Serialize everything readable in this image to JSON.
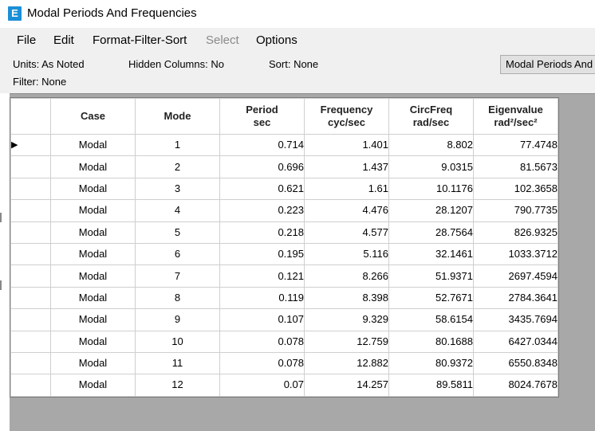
{
  "window": {
    "title": "Modal Periods And Frequencies",
    "app_icon_letter": "E",
    "app_icon_color": "#1a8fd8"
  },
  "menu": {
    "file": "File",
    "edit": "Edit",
    "format": "Format-Filter-Sort",
    "select": "Select",
    "options": "Options"
  },
  "info": {
    "units": "Units: As Noted",
    "hidden_columns": "Hidden Columns: No",
    "sort": "Sort: None",
    "filter": "Filter: None",
    "table_button": "Modal Periods And Frequencies"
  },
  "table": {
    "headers": {
      "case": "Case",
      "mode": "Mode",
      "period": "Period",
      "period_unit": "sec",
      "frequency": "Frequency",
      "frequency_unit": "cyc/sec",
      "circfreq": "CircFreq",
      "circfreq_unit": "rad/sec",
      "eigenvalue": "Eigenvalue",
      "eigenvalue_unit": "rad²/sec²"
    },
    "row_pointer": "▶",
    "rows": [
      {
        "case": "Modal",
        "mode": "1",
        "period": "0.714",
        "frequency": "1.401",
        "circfreq": "8.802",
        "eigenvalue": "77.4748"
      },
      {
        "case": "Modal",
        "mode": "2",
        "period": "0.696",
        "frequency": "1.437",
        "circfreq": "9.0315",
        "eigenvalue": "81.5673"
      },
      {
        "case": "Modal",
        "mode": "3",
        "period": "0.621",
        "frequency": "1.61",
        "circfreq": "10.1176",
        "eigenvalue": "102.3658"
      },
      {
        "case": "Modal",
        "mode": "4",
        "period": "0.223",
        "frequency": "4.476",
        "circfreq": "28.1207",
        "eigenvalue": "790.7735"
      },
      {
        "case": "Modal",
        "mode": "5",
        "period": "0.218",
        "frequency": "4.577",
        "circfreq": "28.7564",
        "eigenvalue": "826.9325"
      },
      {
        "case": "Modal",
        "mode": "6",
        "period": "0.195",
        "frequency": "5.116",
        "circfreq": "32.1461",
        "eigenvalue": "1033.3712"
      },
      {
        "case": "Modal",
        "mode": "7",
        "period": "0.121",
        "frequency": "8.266",
        "circfreq": "51.9371",
        "eigenvalue": "2697.4594"
      },
      {
        "case": "Modal",
        "mode": "8",
        "period": "0.119",
        "frequency": "8.398",
        "circfreq": "52.7671",
        "eigenvalue": "2784.3641"
      },
      {
        "case": "Modal",
        "mode": "9",
        "period": "0.107",
        "frequency": "9.329",
        "circfreq": "58.6154",
        "eigenvalue": "3435.7694"
      },
      {
        "case": "Modal",
        "mode": "10",
        "period": "0.078",
        "frequency": "12.759",
        "circfreq": "80.1688",
        "eigenvalue": "6427.0344"
      },
      {
        "case": "Modal",
        "mode": "11",
        "period": "0.078",
        "frequency": "12.882",
        "circfreq": "80.9372",
        "eigenvalue": "6550.8348"
      },
      {
        "case": "Modal",
        "mode": "12",
        "period": "0.07",
        "frequency": "14.257",
        "circfreq": "89.5811",
        "eigenvalue": "8024.7678"
      }
    ]
  }
}
